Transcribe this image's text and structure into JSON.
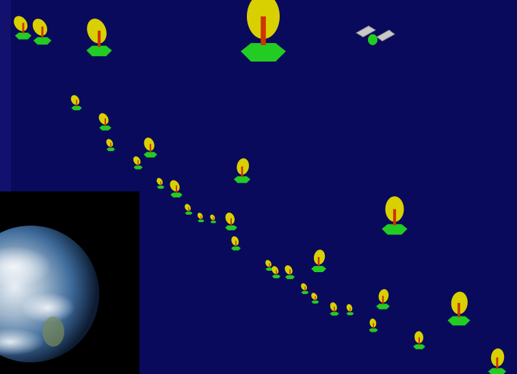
{
  "scene": {
    "background_color": "#0a0a5c",
    "left_bar_color": "#12126e",
    "dish_color": "#d8d000",
    "base_color": "#22cc22",
    "mast_color": "#cc3300",
    "panel_color": "#c8c8c8"
  },
  "earth": {
    "ocean_color": "#3d6a9a",
    "land_color": "#7a8a5a",
    "cloud_color": "#e8eef4",
    "backdrop_color": "#000000"
  },
  "objects": [
    {
      "kind": "dish"
    },
    {
      "kind": "dish"
    },
    {
      "kind": "dish"
    },
    {
      "kind": "dish"
    },
    {
      "kind": "satellite"
    },
    {
      "kind": "dish"
    },
    {
      "kind": "dish"
    },
    {
      "kind": "dish"
    },
    {
      "kind": "dish"
    },
    {
      "kind": "dish"
    },
    {
      "kind": "dish"
    },
    {
      "kind": "dish"
    },
    {
      "kind": "dish"
    },
    {
      "kind": "dish"
    },
    {
      "kind": "dish"
    },
    {
      "kind": "dish"
    },
    {
      "kind": "dish"
    },
    {
      "kind": "dish"
    },
    {
      "kind": "dish"
    },
    {
      "kind": "dish"
    },
    {
      "kind": "dish"
    },
    {
      "kind": "dish"
    },
    {
      "kind": "dish"
    },
    {
      "kind": "dish"
    },
    {
      "kind": "dish"
    },
    {
      "kind": "dish"
    },
    {
      "kind": "dish"
    },
    {
      "kind": "dish"
    },
    {
      "kind": "dish"
    },
    {
      "kind": "dish"
    },
    {
      "kind": "dish"
    },
    {
      "kind": "dish"
    },
    {
      "kind": "dish"
    },
    {
      "kind": "dish"
    }
  ]
}
